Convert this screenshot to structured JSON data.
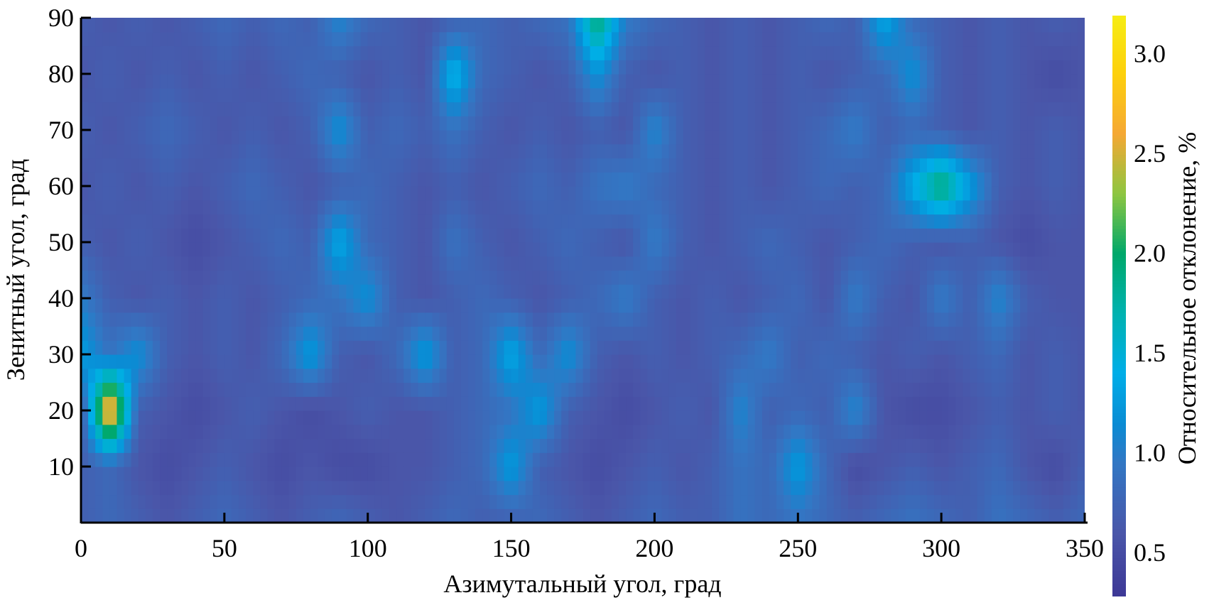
{
  "chart_data": {
    "type": "heatmap",
    "title": "",
    "xlabel": "Азимутальный угол, град",
    "ylabel": "Зенитный угол, град",
    "colorbar_label": "Относительное отклонение, %",
    "xlim": [
      0,
      350
    ],
    "ylim": [
      0,
      90
    ],
    "clim": [
      0.28,
      3.19
    ],
    "x_ticks": [
      "0",
      "50",
      "100",
      "150",
      "200",
      "250",
      "300",
      "350"
    ],
    "y_ticks": [
      "10",
      "20",
      "30",
      "40",
      "50",
      "60",
      "70",
      "80",
      "90"
    ],
    "colorbar_ticks": [
      "0.5",
      "1.0",
      "1.5",
      "2.0",
      "2.5",
      "3.0"
    ],
    "grid": false,
    "x": [
      0,
      10,
      20,
      30,
      40,
      50,
      60,
      70,
      80,
      90,
      100,
      110,
      120,
      130,
      140,
      150,
      160,
      170,
      180,
      190,
      200,
      210,
      220,
      230,
      240,
      250,
      260,
      270,
      280,
      290,
      300,
      310,
      320,
      330,
      340,
      350
    ],
    "y": [
      0,
      10,
      20,
      30,
      40,
      50,
      60,
      70,
      80,
      90
    ],
    "values": [
      [
        0.7,
        0.8,
        0.7,
        0.6,
        0.7,
        0.8,
        0.7,
        0.6,
        0.7,
        0.8,
        0.7,
        0.6,
        0.7,
        0.8,
        0.7,
        0.7,
        0.8,
        0.7,
        0.6,
        0.7,
        0.8,
        0.7,
        0.7,
        0.9,
        0.8,
        0.9,
        0.8,
        0.7,
        0.8,
        0.9,
        0.8,
        0.7,
        0.9,
        0.8,
        0.7,
        0.8
      ],
      [
        0.7,
        0.8,
        0.6,
        0.5,
        0.6,
        0.7,
        0.6,
        0.5,
        0.6,
        0.5,
        0.5,
        0.6,
        0.6,
        0.7,
        0.8,
        1.3,
        0.7,
        0.6,
        0.5,
        0.6,
        0.7,
        0.6,
        0.7,
        0.9,
        0.8,
        1.3,
        0.8,
        0.5,
        0.6,
        0.7,
        0.6,
        0.7,
        0.8,
        0.6,
        0.5,
        0.7
      ],
      [
        0.6,
        3.0,
        0.7,
        0.6,
        0.5,
        0.6,
        0.7,
        0.6,
        0.5,
        0.6,
        0.7,
        0.6,
        0.6,
        0.7,
        0.8,
        0.9,
        1.3,
        0.7,
        0.6,
        0.5,
        0.6,
        0.7,
        0.6,
        1.1,
        0.7,
        0.8,
        0.7,
        1.1,
        0.6,
        0.5,
        0.5,
        0.6,
        0.7,
        0.6,
        0.7,
        0.6
      ],
      [
        1.3,
        0.9,
        1.2,
        0.7,
        0.6,
        0.7,
        0.6,
        0.8,
        1.3,
        0.7,
        0.6,
        0.8,
        1.3,
        0.7,
        0.8,
        1.4,
        0.8,
        1.2,
        0.7,
        0.6,
        0.7,
        0.6,
        0.7,
        0.8,
        1.0,
        0.7,
        0.8,
        0.7,
        0.6,
        0.7,
        0.6,
        0.7,
        0.8,
        0.6,
        0.7,
        0.6
      ],
      [
        1.0,
        0.7,
        0.6,
        0.7,
        0.6,
        0.7,
        0.6,
        0.7,
        0.8,
        0.9,
        1.2,
        0.7,
        0.6,
        0.7,
        0.8,
        0.7,
        0.6,
        0.7,
        0.8,
        1.0,
        0.7,
        0.6,
        0.7,
        0.6,
        0.7,
        0.8,
        0.6,
        1.0,
        0.7,
        0.6,
        1.0,
        0.7,
        1.1,
        0.7,
        0.6,
        0.6
      ],
      [
        0.7,
        0.6,
        0.7,
        0.6,
        0.5,
        0.6,
        0.7,
        0.8,
        0.7,
        1.4,
        0.8,
        0.7,
        0.6,
        0.9,
        0.7,
        0.6,
        0.7,
        0.8,
        0.7,
        0.6,
        1.0,
        0.7,
        0.6,
        0.7,
        0.8,
        0.7,
        0.6,
        0.7,
        0.8,
        0.7,
        0.6,
        0.7,
        0.6,
        0.5,
        0.6,
        0.6
      ],
      [
        0.6,
        0.7,
        0.6,
        0.7,
        0.6,
        0.7,
        0.8,
        0.7,
        0.6,
        0.7,
        0.8,
        0.7,
        0.6,
        0.7,
        0.6,
        0.7,
        0.8,
        0.7,
        0.9,
        1.0,
        0.8,
        0.7,
        0.6,
        0.7,
        0.6,
        0.7,
        0.8,
        0.7,
        0.8,
        1.4,
        2.0,
        1.3,
        0.7,
        0.6,
        0.7,
        0.6
      ],
      [
        0.7,
        0.6,
        0.7,
        0.8,
        0.7,
        0.6,
        0.7,
        0.6,
        0.7,
        1.2,
        0.7,
        0.8,
        0.7,
        0.9,
        0.7,
        0.6,
        0.7,
        0.6,
        0.7,
        0.6,
        1.1,
        0.7,
        0.6,
        0.7,
        0.6,
        0.7,
        0.8,
        1.0,
        0.7,
        0.8,
        0.7,
        0.6,
        0.7,
        0.6,
        0.7,
        0.6
      ],
      [
        0.6,
        0.7,
        0.6,
        0.7,
        0.6,
        0.7,
        0.6,
        0.7,
        0.8,
        0.7,
        0.6,
        0.7,
        0.6,
        1.5,
        0.8,
        0.7,
        0.6,
        0.7,
        1.2,
        0.7,
        0.6,
        0.7,
        0.6,
        0.7,
        0.6,
        0.7,
        0.6,
        0.7,
        0.8,
        1.2,
        0.7,
        0.6,
        0.7,
        0.6,
        0.5,
        0.6
      ],
      [
        0.7,
        0.6,
        0.7,
        0.6,
        0.7,
        0.8,
        0.7,
        0.8,
        0.7,
        1.1,
        0.8,
        0.7,
        0.6,
        0.7,
        0.8,
        0.7,
        0.8,
        0.9,
        2.0,
        1.0,
        0.8,
        0.7,
        0.6,
        0.7,
        0.6,
        0.7,
        0.8,
        0.7,
        1.4,
        0.8,
        0.7,
        0.6,
        0.7,
        0.6,
        0.7,
        0.6
      ]
    ],
    "colormap": [
      [
        0.28,
        "#3d3896"
      ],
      [
        0.6,
        "#4a56a9"
      ],
      [
        0.95,
        "#3277c4"
      ],
      [
        1.15,
        "#0a8cd4"
      ],
      [
        1.4,
        "#00aee8"
      ],
      [
        1.7,
        "#00b2b0"
      ],
      [
        2.0,
        "#00a86a"
      ],
      [
        2.3,
        "#8ec641"
      ],
      [
        2.6,
        "#f5a834"
      ],
      [
        2.9,
        "#fdd00c"
      ],
      [
        3.19,
        "#f6ec14"
      ]
    ]
  }
}
